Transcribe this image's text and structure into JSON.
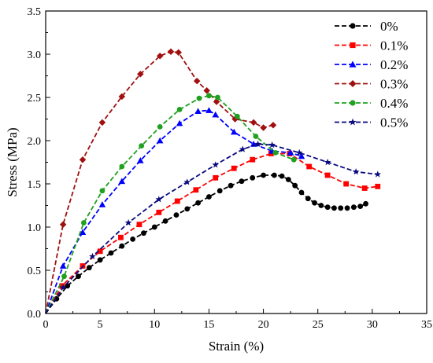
{
  "chart_data": {
    "type": "line",
    "xlabel": "Strain (%)",
    "ylabel": "Stress (MPa)",
    "xlim": [
      0,
      35
    ],
    "ylim": [
      0,
      3.5
    ],
    "xticks": [
      "0",
      "5",
      "10",
      "15",
      "20",
      "25",
      "30",
      "35"
    ],
    "yticks": [
      "0.0",
      "0.5",
      "1.0",
      "1.5",
      "2.0",
      "2.5",
      "3.0",
      "3.5"
    ],
    "grid": false,
    "legend_position": "top-right",
    "series": [
      {
        "name": "0%",
        "color": "#000000",
        "marker": "circle",
        "x": [
          0,
          1.0,
          2.0,
          3.0,
          4.0,
          5.0,
          6.0,
          7.0,
          8.0,
          9.0,
          10.0,
          11.0,
          12.0,
          13.0,
          14.0,
          15.0,
          16.0,
          17.0,
          18.0,
          19.0,
          20.0,
          21.0,
          21.7,
          22.3,
          22.9,
          23.5,
          24.1,
          24.7,
          25.3,
          25.9,
          26.5,
          27.1,
          27.7,
          28.3,
          28.9,
          29.4
        ],
        "y": [
          0,
          0.17,
          0.32,
          0.43,
          0.53,
          0.62,
          0.7,
          0.78,
          0.86,
          0.93,
          1.0,
          1.07,
          1.14,
          1.21,
          1.28,
          1.35,
          1.42,
          1.48,
          1.53,
          1.57,
          1.6,
          1.6,
          1.59,
          1.55,
          1.48,
          1.4,
          1.33,
          1.28,
          1.25,
          1.23,
          1.22,
          1.22,
          1.22,
          1.23,
          1.24,
          1.27
        ]
      },
      {
        "name": "0.1%",
        "color": "#ff0000",
        "marker": "square",
        "x": [
          0,
          1.5,
          3.4,
          5.0,
          6.9,
          8.6,
          10.4,
          12.1,
          13.8,
          15.6,
          17.3,
          19.0,
          20.7,
          22.4,
          24.2,
          25.9,
          27.6,
          29.3,
          30.5
        ],
        "y": [
          0,
          0.32,
          0.55,
          0.72,
          0.88,
          1.03,
          1.17,
          1.3,
          1.43,
          1.57,
          1.68,
          1.78,
          1.85,
          1.85,
          1.7,
          1.6,
          1.5,
          1.45,
          1.47
        ]
      },
      {
        "name": "0.2%",
        "color": "#0000ff",
        "marker": "triangle",
        "x": [
          0,
          1.6,
          3.4,
          5.2,
          7.0,
          8.7,
          10.5,
          12.3,
          14.0,
          15.0,
          15.6,
          17.3,
          19.1,
          20.8,
          22.5,
          23.5
        ],
        "y": [
          0,
          0.55,
          0.94,
          1.26,
          1.53,
          1.77,
          2.0,
          2.2,
          2.34,
          2.35,
          2.3,
          2.1,
          1.96,
          1.88,
          1.86,
          1.82
        ]
      },
      {
        "name": "0.3%",
        "color": "#a01010",
        "marker": "diamond",
        "x": [
          0,
          1.6,
          3.4,
          5.2,
          7.0,
          8.7,
          10.5,
          11.5,
          12.2,
          13.9,
          14.8,
          15.7,
          17.4,
          19.1,
          20.0,
          20.9
        ],
        "y": [
          0,
          1.03,
          1.78,
          2.21,
          2.51,
          2.77,
          2.98,
          3.03,
          3.02,
          2.69,
          2.58,
          2.45,
          2.25,
          2.21,
          2.15,
          2.18
        ]
      },
      {
        "name": "0.4%",
        "color": "#1fa01f",
        "marker": "circle",
        "x": [
          0,
          1.7,
          3.5,
          5.2,
          7.0,
          8.8,
          10.5,
          12.3,
          14.1,
          15.0,
          15.8,
          17.6,
          19.3,
          21.1,
          22.8
        ],
        "y": [
          0,
          0.43,
          1.05,
          1.42,
          1.7,
          1.94,
          2.16,
          2.36,
          2.49,
          2.52,
          2.5,
          2.28,
          2.05,
          1.86,
          1.78
        ]
      },
      {
        "name": "0.5%",
        "color": "#0a0a80",
        "marker": "star",
        "x": [
          0,
          1.6,
          4.3,
          7.6,
          10.4,
          13.0,
          15.6,
          18.1,
          19.5,
          20.8,
          23.3,
          25.9,
          28.5,
          30.5
        ],
        "y": [
          0,
          0.3,
          0.66,
          1.05,
          1.32,
          1.52,
          1.72,
          1.9,
          1.96,
          1.95,
          1.86,
          1.75,
          1.64,
          1.61
        ]
      }
    ]
  }
}
